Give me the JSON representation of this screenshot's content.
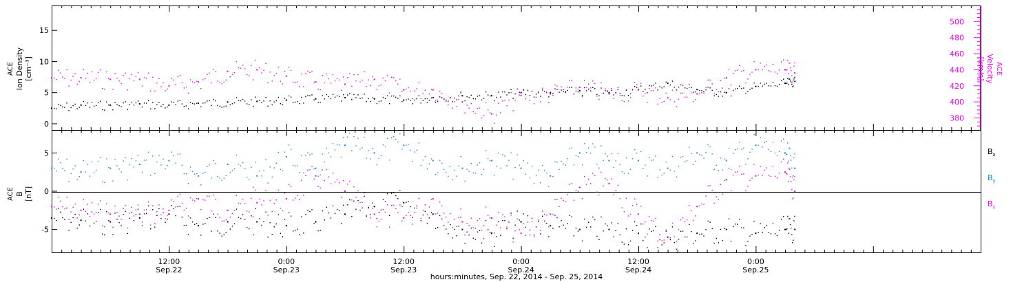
{
  "colors": {
    "black": "#000000",
    "magenta": "#ee00ee",
    "blue": "#1a86dc"
  },
  "xaxis": {
    "title": "hours:minutes, Sep. 22, 2014 - Sep. 25, 2014",
    "range_hours": [
      0,
      95
    ],
    "major_ticks": [
      {
        "hour": 12,
        "label1": "12:00",
        "label2": "Sep.22"
      },
      {
        "hour": 24,
        "label1": "0:00",
        "label2": "Sep.23"
      },
      {
        "hour": 36,
        "label1": "12:00",
        "label2": "Sep.23"
      },
      {
        "hour": 48,
        "label1": "0:00",
        "label2": "Sep.24"
      },
      {
        "hour": 60,
        "label1": "12:00",
        "label2": "Sep.24"
      },
      {
        "hour": 72,
        "label1": "0:00",
        "label2": "Sep.25"
      }
    ]
  },
  "chart_data": [
    {
      "type": "scatter",
      "panel": "top",
      "left_axis": {
        "label_line1": "ACE",
        "label_line2": "Ion Density",
        "label_line3": "[cm⁻³]",
        "ylim": [
          -1,
          19
        ],
        "ticks": [
          "0",
          "5",
          "10",
          "15"
        ]
      },
      "right_axis": {
        "label_line1": "ACE",
        "label_line2": "Velocity",
        "label_line3": "[km/s]",
        "ylim": [
          365,
          520
        ],
        "ticks": [
          "380",
          "400",
          "420",
          "440",
          "460",
          "480",
          "500"
        ]
      },
      "series": [
        {
          "key": "density",
          "axis": "left",
          "color": "#000000",
          "x": [
            0,
            3,
            6,
            9,
            12,
            15,
            18,
            21,
            24,
            27,
            30,
            33,
            36,
            39,
            42,
            45,
            48,
            51,
            54,
            57,
            60,
            63,
            66,
            69,
            72,
            75,
            76
          ],
          "y": [
            2.5,
            3.0,
            3.0,
            3.2,
            3.0,
            3.3,
            3.5,
            3.6,
            3.8,
            4.0,
            4.2,
            4.0,
            3.8,
            4.2,
            4.5,
            4.5,
            5.0,
            5.0,
            5.3,
            5.0,
            5.5,
            6.5,
            5.5,
            5.0,
            6.0,
            6.5,
            6.8
          ]
        },
        {
          "key": "velocity",
          "axis": "right",
          "color": "#ee00ee",
          "x": [
            0,
            3,
            6,
            9,
            12,
            15,
            18,
            21,
            24,
            27,
            30,
            33,
            36,
            39,
            42,
            45,
            48,
            51,
            54,
            57,
            60,
            63,
            66,
            69,
            72,
            75,
            76
          ],
          "y": [
            430,
            430,
            428,
            428,
            420,
            425,
            438,
            440,
            432,
            425,
            422,
            428,
            415,
            415,
            400,
            385,
            408,
            410,
            418,
            410,
            415,
            405,
            410,
            430,
            440,
            440,
            436
          ]
        }
      ]
    },
    {
      "type": "scatter",
      "panel": "bottom",
      "left_axis": {
        "label_line1": "ACE",
        "label_line2": "B",
        "label_line3": "[nT]",
        "ylim": [
          -8,
          8
        ],
        "ticks": [
          "-5",
          "0",
          "5"
        ]
      },
      "legend": [
        {
          "label": "B",
          "sub": "x",
          "color": "#000000"
        },
        {
          "label": "B",
          "sub": "y",
          "color": "#1a86dc"
        },
        {
          "label": "B",
          "sub": "z",
          "color": "#ee00ee"
        }
      ],
      "series": [
        {
          "key": "bx",
          "color": "#000000",
          "x": [
            0,
            3,
            6,
            9,
            12,
            15,
            18,
            21,
            24,
            27,
            30,
            33,
            36,
            39,
            42,
            45,
            48,
            51,
            54,
            57,
            60,
            63,
            66,
            69,
            72,
            75,
            76
          ],
          "y": [
            -3.5,
            -3.8,
            -4.0,
            -3.5,
            -3.0,
            -4.5,
            -4.0,
            -4.0,
            -4.5,
            -4.0,
            -3.0,
            -2.0,
            -1.5,
            -3.0,
            -5.0,
            -5.5,
            -4.0,
            -4.5,
            -5.0,
            -5.0,
            -5.5,
            -6.0,
            -5.5,
            -5.0,
            -5.5,
            -5.0,
            -5.0
          ]
        },
        {
          "key": "by",
          "color": "#1a86dc",
          "x": [
            0,
            3,
            6,
            9,
            12,
            15,
            18,
            21,
            24,
            27,
            30,
            33,
            36,
            39,
            42,
            45,
            48,
            51,
            54,
            57,
            60,
            63,
            66,
            69,
            72,
            75,
            76
          ],
          "y": [
            3.0,
            2.5,
            3.0,
            3.5,
            4.0,
            2.0,
            3.5,
            2.0,
            4.5,
            3.0,
            6.0,
            5.0,
            6.0,
            4.0,
            3.0,
            4.0,
            3.0,
            2.0,
            5.0,
            4.0,
            4.0,
            3.0,
            5.0,
            4.0,
            6.0,
            5.0,
            3.0
          ]
        },
        {
          "key": "bz",
          "color": "#ee00ee",
          "x": [
            0,
            3,
            6,
            9,
            12,
            15,
            18,
            21,
            24,
            27,
            30,
            33,
            36,
            39,
            42,
            45,
            48,
            51,
            54,
            57,
            60,
            63,
            66,
            69,
            72,
            75,
            76
          ],
          "y": [
            -2.0,
            -2.5,
            -3.0,
            -3.0,
            -2.5,
            -1.0,
            -2.5,
            -1.5,
            -1.0,
            2.0,
            0.0,
            -3.0,
            -3.5,
            -1.0,
            -4.0,
            -3.5,
            -5.5,
            -3.0,
            0.5,
            1.0,
            -3.0,
            -6.0,
            -2.0,
            1.5,
            2.0,
            2.5,
            0.0
          ]
        }
      ]
    }
  ]
}
